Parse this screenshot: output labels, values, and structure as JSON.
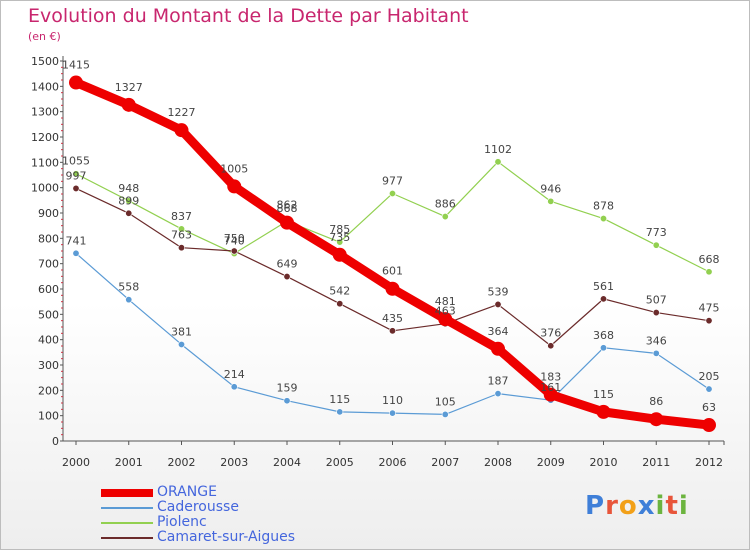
{
  "title": "Evolution du Montant de la Dette par Habitant",
  "subtitle": "(en €)",
  "logo": {
    "letters": [
      "P",
      "r",
      "o",
      "x",
      "i",
      "t",
      "i"
    ],
    "colors": [
      "#3f7fd8",
      "#e8553a",
      "#f2a018",
      "#3f7fd8",
      "#6cb43f",
      "#e8553a",
      "#6cb43f"
    ]
  },
  "chart_data": {
    "type": "line",
    "x": [
      "2000",
      "2001",
      "2002",
      "2003",
      "2004",
      "2005",
      "2006",
      "2007",
      "2008",
      "2009",
      "2010",
      "2011",
      "2012"
    ],
    "ylim": [
      0,
      1500
    ],
    "yticks": [
      0,
      100,
      200,
      300,
      400,
      500,
      600,
      700,
      800,
      900,
      1000,
      1100,
      1200,
      1300,
      1400,
      1500
    ],
    "grid": false,
    "legend_position": "bottom-left",
    "series": [
      {
        "name": "Caderousse",
        "color": "#5b9bd5",
        "values": [
          741,
          558,
          381,
          214,
          159,
          115,
          110,
          105,
          187,
          161,
          368,
          346,
          205
        ]
      },
      {
        "name": "Piolenc",
        "color": "#92d050",
        "values": [
          1055,
          948,
          837,
          740,
          868,
          785,
          977,
          886,
          1102,
          946,
          878,
          773,
          668
        ]
      },
      {
        "name": "Camaret-sur-Aigues",
        "color": "#6b2b2b",
        "values": [
          997,
          899,
          763,
          750,
          649,
          542,
          435,
          463,
          539,
          376,
          561,
          507,
          475
        ]
      },
      {
        "name": "ORANGE",
        "color": "#ee0000",
        "values": [
          1415,
          1327,
          1227,
          1005,
          862,
          735,
          601,
          481,
          364,
          183,
          115,
          86,
          63
        ]
      }
    ]
  }
}
